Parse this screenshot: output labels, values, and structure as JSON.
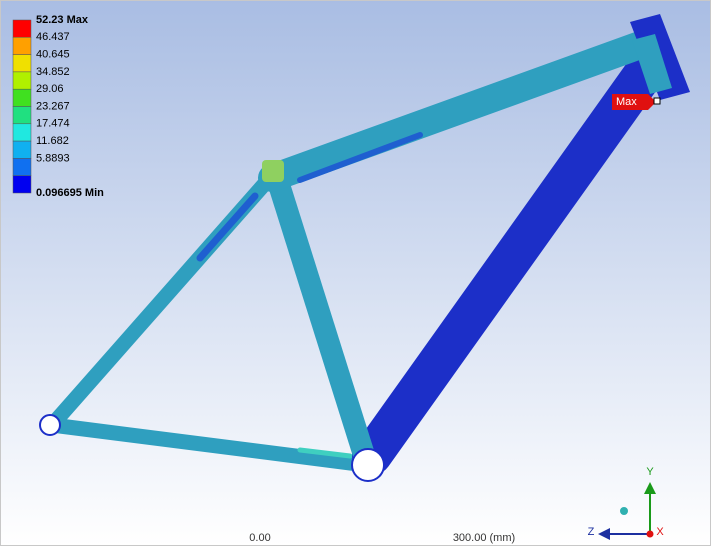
{
  "legend": {
    "entries": [
      "52.23 Max",
      "46.437",
      "40.645",
      "34.852",
      "29.06",
      "23.267",
      "17.474",
      "11.682",
      "5.8893",
      "0.096695 Min"
    ]
  },
  "probe": {
    "label": "Max"
  },
  "scale": {
    "labels": [
      "0.00",
      "300.00 (mm)"
    ]
  },
  "triad": {
    "y": "Y",
    "z": "Z",
    "x": "X"
  }
}
